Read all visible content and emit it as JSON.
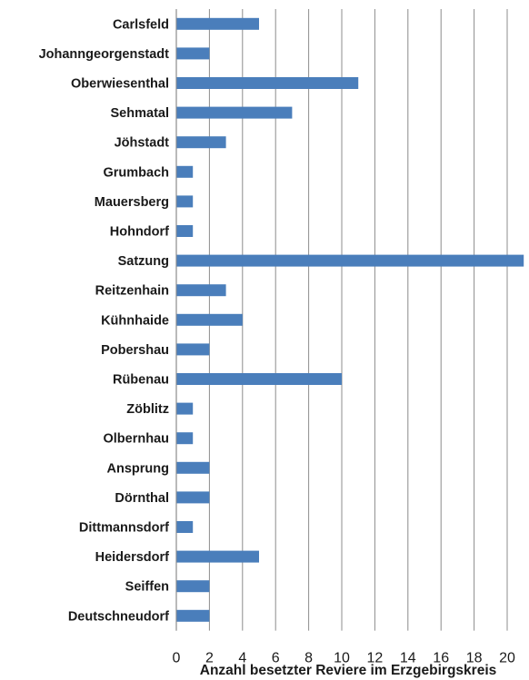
{
  "chart_data": {
    "type": "bar",
    "orientation": "horizontal",
    "categories": [
      "Carlsfeld",
      "Johanngeorgenstadt",
      "Oberwiesenthal",
      "Sehmatal",
      "Jöhstadt",
      "Grumbach",
      "Mauersberg",
      "Hohndorf",
      "Satzung",
      "Reitzenhain",
      "Kühnhaide",
      "Pobershau",
      "Rübenau",
      "Zöblitz",
      "Olbernhau",
      "Ansprung",
      "Dörnthal",
      "Dittmannsdorf",
      "Heidersdorf",
      "Seiffen",
      "Deutschneudorf"
    ],
    "values": [
      5,
      2,
      11,
      7,
      3,
      1,
      1,
      1,
      21,
      3,
      4,
      2,
      10,
      1,
      1,
      2,
      2,
      1,
      5,
      2,
      2
    ],
    "xlabel": "Anzahl besetzter Reviere im Erzgebirgskreis",
    "xticks": [
      "0",
      "2",
      "4",
      "6",
      "8",
      "10",
      "12",
      "14",
      "16",
      "18",
      "20"
    ],
    "xlim": [
      0,
      21
    ],
    "grid": "vertical",
    "bar_color": "#4a7ebb",
    "grid_color": "#8c8c8c"
  }
}
